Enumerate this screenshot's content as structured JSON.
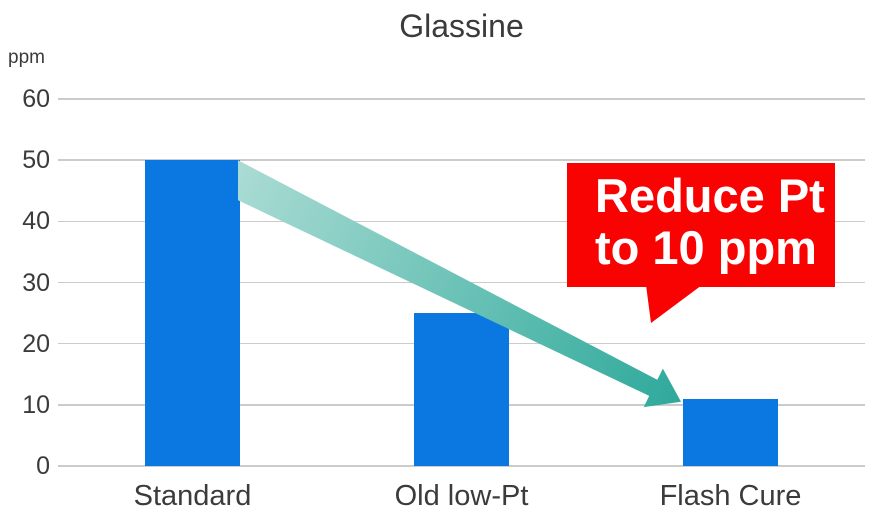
{
  "chart_data": {
    "type": "bar",
    "title": "Glassine",
    "ylabel": "ppm",
    "categories": [
      "Standard",
      "Old low-Pt",
      "Flash Cure"
    ],
    "values": [
      50,
      25,
      11
    ],
    "ylim": [
      0,
      60
    ],
    "yticks": [
      0,
      10,
      20,
      30,
      40,
      50,
      60
    ],
    "grid": true,
    "legend": false,
    "bar_color": "#0A78E0",
    "gridline_color": "#CBCBCB",
    "text_color": "#3B3B3B",
    "arrow": {
      "from_category": "Standard",
      "to_category": "Flash Cure",
      "gradient_start": "#A9DBD3",
      "gradient_end": "#2EA99B"
    },
    "annotation": {
      "line1": "Reduce Pt",
      "line2": "to 10 ppm",
      "bg_color": "#F90202",
      "text_color": "#FFFFFF"
    }
  }
}
